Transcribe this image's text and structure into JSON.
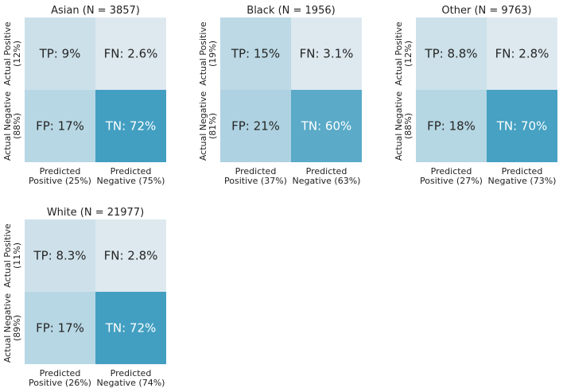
{
  "chart_data": [
    {
      "type": "heatmap",
      "title": "Asian (N = 3857)",
      "row_labels": [
        [
          "Actual Positive",
          "(12%)"
        ],
        [
          "Actual Negative",
          "(88%)"
        ]
      ],
      "col_labels": [
        [
          "Predicted",
          "Positive (25%)"
        ],
        [
          "Predicted",
          "Negative (75%)"
        ]
      ],
      "cells": [
        [
          {
            "label": "TP",
            "value": 9,
            "text": "TP: 9%"
          },
          {
            "label": "FN",
            "value": 2.6,
            "text": "FN: 2.6%"
          }
        ],
        [
          {
            "label": "FP",
            "value": 17,
            "text": "FP: 17%"
          },
          {
            "label": "TN",
            "value": 72,
            "text": "TN: 72%"
          }
        ]
      ]
    },
    {
      "type": "heatmap",
      "title": "Black (N = 1956)",
      "row_labels": [
        [
          "Actual Positive",
          "(19%)"
        ],
        [
          "Actual Negative",
          "(81%)"
        ]
      ],
      "col_labels": [
        [
          "Predicted",
          "Positive (37%)"
        ],
        [
          "Predicted",
          "Negative (63%)"
        ]
      ],
      "cells": [
        [
          {
            "label": "TP",
            "value": 15,
            "text": "TP: 15%"
          },
          {
            "label": "FN",
            "value": 3.1,
            "text": "FN: 3.1%"
          }
        ],
        [
          {
            "label": "FP",
            "value": 21,
            "text": "FP: 21%"
          },
          {
            "label": "TN",
            "value": 60,
            "text": "TN: 60%"
          }
        ]
      ]
    },
    {
      "type": "heatmap",
      "title": "Other (N = 9763)",
      "row_labels": [
        [
          "Actual Positive",
          "(12%)"
        ],
        [
          "Actual Negative",
          "(88%)"
        ]
      ],
      "col_labels": [
        [
          "Predicted",
          "Positive (27%)"
        ],
        [
          "Predicted",
          "Negative (73%)"
        ]
      ],
      "cells": [
        [
          {
            "label": "TP",
            "value": 8.8,
            "text": "TP: 8.8%"
          },
          {
            "label": "FN",
            "value": 2.8,
            "text": "FN: 2.8%"
          }
        ],
        [
          {
            "label": "FP",
            "value": 18,
            "text": "FP: 18%"
          },
          {
            "label": "TN",
            "value": 70,
            "text": "TN: 70%"
          }
        ]
      ]
    },
    {
      "type": "heatmap",
      "title": "White (N = 21977)",
      "row_labels": [
        [
          "Actual Positive",
          "(11%)"
        ],
        [
          "Actual Negative",
          "(89%)"
        ]
      ],
      "col_labels": [
        [
          "Predicted",
          "Positive (26%)"
        ],
        [
          "Predicted",
          "Negative (74%)"
        ]
      ],
      "cells": [
        [
          {
            "label": "TP",
            "value": 8.3,
            "text": "TP: 8.3%"
          },
          {
            "label": "FN",
            "value": 2.8,
            "text": "FN: 2.8%"
          }
        ],
        [
          {
            "label": "FP",
            "value": 17,
            "text": "FP: 17%"
          },
          {
            "label": "TN",
            "value": 72,
            "text": "TN: 72%"
          }
        ]
      ]
    }
  ],
  "colors": {
    "low": "#e8eef2",
    "high": "#3c9cbf",
    "text_dark": "#262626",
    "text_light": "#ffffff"
  }
}
